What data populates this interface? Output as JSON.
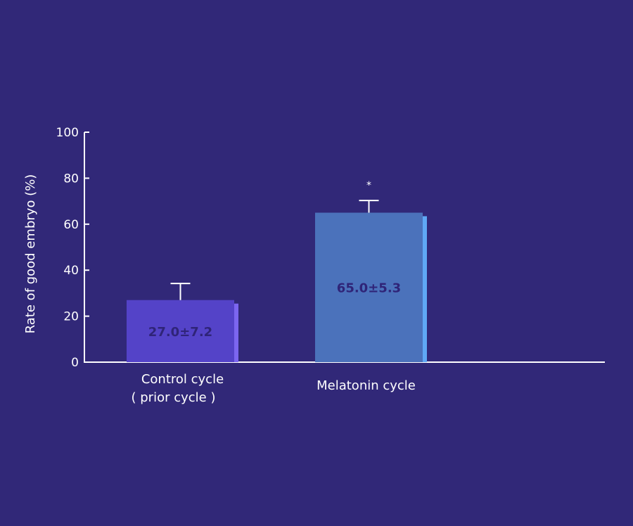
{
  "chart_data": {
    "type": "bar",
    "title": "",
    "xlabel": "",
    "ylabel": "Rate of good embryo (%)",
    "ylim": [
      0,
      100
    ],
    "yticks": [
      "0",
      "20",
      "40",
      "60",
      "80",
      "100"
    ],
    "categories": [
      {
        "line1": "Control cycle",
        "line2": "( prior cycle )"
      },
      {
        "line1": "Melatonin cycle",
        "line2": ""
      }
    ],
    "values": [
      27.0,
      65.0
    ],
    "errors": [
      7.2,
      5.3
    ],
    "data_labels": [
      "27.0±7.2",
      "65.0±5.3"
    ],
    "significance": [
      "",
      "*"
    ],
    "grid": false,
    "legend": "none"
  },
  "colors": {
    "background": "#312878",
    "axis": "#ffffff",
    "bars": [
      "#5443c8",
      "#4b72bb"
    ],
    "bar_sides": [
      "#7c66f0",
      "#5fa8f5"
    ],
    "label_text": "#2f2478"
  }
}
